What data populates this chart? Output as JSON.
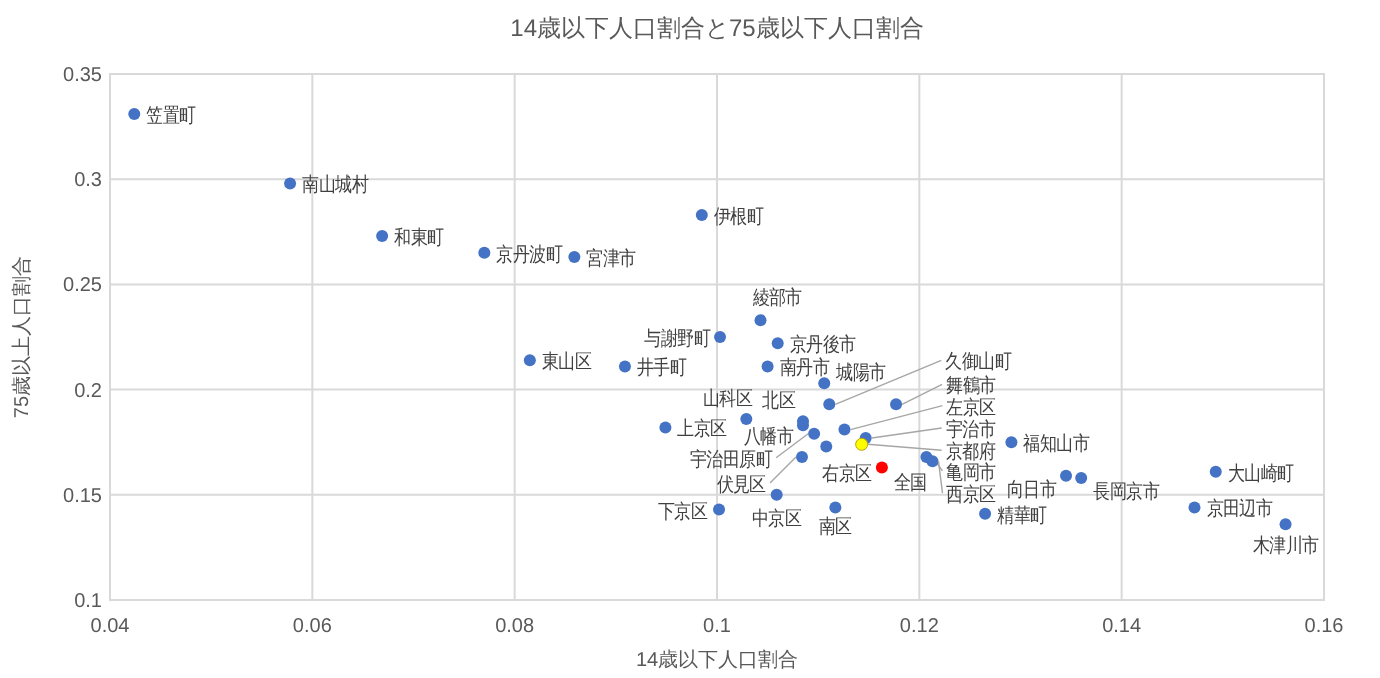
{
  "chart_data": {
    "type": "scatter",
    "title": "14歳以下人口割合と75歳以下人口割合",
    "xlabel": "14歳以下人口割合",
    "ylabel": "75歳以上人口割合",
    "xlim": [
      0.04,
      0.16
    ],
    "xticks": [
      0.04,
      0.06,
      0.08,
      0.1,
      0.12,
      0.14,
      0.16
    ],
    "ylim": [
      0.1,
      0.35
    ],
    "yticks": [
      0.1,
      0.15,
      0.2,
      0.25,
      0.3,
      0.35
    ],
    "grid": true,
    "marker": "circle",
    "x": [
      0.0424,
      0.0578,
      0.0669,
      0.077,
      0.0859,
      0.0985,
      0.1003,
      0.1043,
      0.106,
      0.105,
      0.0815,
      0.0909,
      0.1106,
      0.1111,
      0.1177,
      0.1029,
      0.0949,
      0.1085,
      0.1085,
      0.1096,
      0.1126,
      0.1108,
      0.1147,
      0.1143,
      0.1163,
      0.1084,
      0.1207,
      0.1213,
      0.1291,
      0.1345,
      0.136,
      0.1493,
      0.1472,
      0.1562,
      0.1059,
      0.1002,
      0.1117,
      0.1265
    ],
    "values": [
      0.331,
      0.298,
      0.273,
      0.265,
      0.263,
      0.283,
      0.225,
      0.233,
      0.222,
      0.211,
      0.214,
      0.211,
      0.203,
      0.193,
      0.193,
      0.186,
      0.182,
      0.185,
      0.183,
      0.179,
      0.181,
      0.173,
      0.177,
      0.174,
      0.163,
      0.168,
      0.168,
      0.166,
      0.175,
      0.159,
      0.158,
      0.161,
      0.144,
      0.136,
      0.15,
      0.143,
      0.144,
      0.141
    ],
    "colors": [
      "#4472c4",
      "#4472c4",
      "#4472c4",
      "#4472c4",
      "#4472c4",
      "#4472c4",
      "#4472c4",
      "#4472c4",
      "#4472c4",
      "#4472c4",
      "#4472c4",
      "#4472c4",
      "#4472c4",
      "#4472c4",
      "#4472c4",
      "#4472c4",
      "#4472c4",
      "#4472c4",
      "#4472c4",
      "#4472c4",
      "#4472c4",
      "#4472c4",
      "#4472c4",
      "#ffff00",
      "#ff0000",
      "#4472c4",
      "#4472c4",
      "#4472c4",
      "#4472c4",
      "#4472c4",
      "#4472c4",
      "#4472c4",
      "#4472c4",
      "#4472c4",
      "#4472c4",
      "#4472c4",
      "#4472c4",
      "#4472c4"
    ],
    "value_labels": [
      "笠置町",
      "南山城村",
      "和東町",
      "京丹波町",
      "宮津市",
      "伊根町",
      "与謝野町",
      "綾部市",
      "京丹後市",
      "南丹市",
      "東山区",
      "井手町",
      "城陽市",
      "久御山町",
      "舞鶴市",
      "山科区",
      "上京区",
      "北区",
      "八幡市",
      "宇治田原町",
      "左京区",
      "右京区",
      "宇治市",
      "京都府",
      "全国",
      "伏見区",
      "亀岡市",
      "西京区",
      "福知山市",
      "向日市",
      "長岡京市",
      "大山崎町",
      "京田辺市",
      "木津川市",
      "中京区",
      "下京区",
      "南区",
      "精華町"
    ]
  }
}
